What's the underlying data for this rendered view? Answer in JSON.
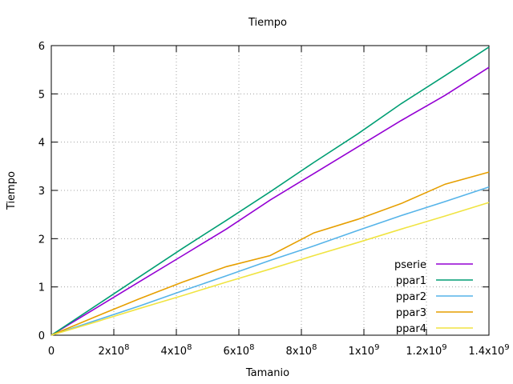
{
  "chart_data": {
    "type": "line",
    "title": "Tiempo",
    "xlabel": "Tamanio",
    "ylabel": "Tiempo",
    "xlim": [
      0,
      1400000000
    ],
    "ylim": [
      0,
      6
    ],
    "grid": true,
    "legend_position": "bottom-right",
    "x_ticks": [
      {
        "value": 0,
        "label": "0"
      },
      {
        "value": 200000000,
        "label": "2x10^8"
      },
      {
        "value": 400000000,
        "label": "4x10^8"
      },
      {
        "value": 600000000,
        "label": "6x10^8"
      },
      {
        "value": 800000000,
        "label": "8x10^8"
      },
      {
        "value": 1000000000,
        "label": "1x10^9"
      },
      {
        "value": 1200000000,
        "label": "1.2x10^9"
      },
      {
        "value": 1400000000,
        "label": "1.4x10^9"
      }
    ],
    "y_ticks": [
      {
        "value": 0,
        "label": "0"
      },
      {
        "value": 1,
        "label": "1"
      },
      {
        "value": 2,
        "label": "2"
      },
      {
        "value": 3,
        "label": "3"
      },
      {
        "value": 4,
        "label": "4"
      },
      {
        "value": 5,
        "label": "5"
      },
      {
        "value": 6,
        "label": "6"
      }
    ],
    "x": [
      0,
      140000000,
      280000000,
      420000000,
      560000000,
      700000000,
      840000000,
      980000000,
      1120000000,
      1260000000,
      1400000000
    ],
    "series": [
      {
        "name": "pserie",
        "color": "#9400d3",
        "values": [
          0,
          0.55,
          1.1,
          1.65,
          2.2,
          2.8,
          3.35,
          3.9,
          4.45,
          4.97,
          5.55
        ]
      },
      {
        "name": "ppar1",
        "color": "#009e73",
        "values": [
          0,
          0.6,
          1.2,
          1.8,
          2.38,
          2.97,
          3.58,
          4.17,
          4.8,
          5.38,
          5.97
        ]
      },
      {
        "name": "ppar2",
        "color": "#56b4e9",
        "values": [
          0,
          0.3,
          0.6,
          0.92,
          1.23,
          1.55,
          1.85,
          2.17,
          2.48,
          2.77,
          3.07
        ]
      },
      {
        "name": "ppar3",
        "color": "#e69f00",
        "values": [
          0,
          0.38,
          0.75,
          1.1,
          1.42,
          1.65,
          2.12,
          2.4,
          2.73,
          3.13,
          3.38
        ]
      },
      {
        "name": "ppar4",
        "color": "#f0e442",
        "values": [
          0,
          0.27,
          0.55,
          0.82,
          1.1,
          1.37,
          1.65,
          1.92,
          2.2,
          2.47,
          2.75
        ]
      }
    ]
  }
}
